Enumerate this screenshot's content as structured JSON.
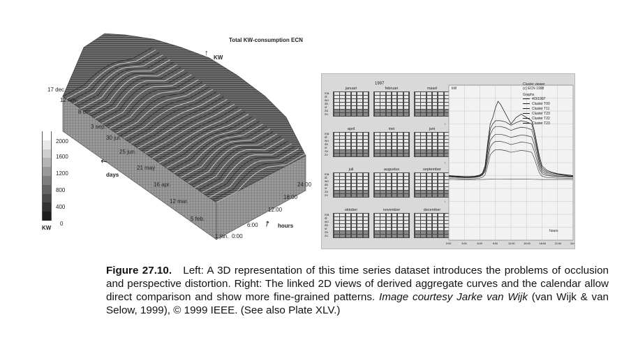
{
  "left_figure": {
    "title": "Total KW-consumption ECN",
    "z_axis_label": "KW",
    "date_labels": [
      "17 dec.",
      "12 nov.",
      "8 oct.",
      "3 sep.",
      "30 jul.",
      "25 jun.",
      "21 may",
      "16 apr.",
      "12 mar.",
      "5 feb.",
      "1 jan."
    ],
    "days_label": "days",
    "hour_labels": [
      "0:00",
      "6:00",
      "12:00",
      "18:00",
      "24:00"
    ],
    "hours_label": "hours",
    "legend_values": [
      "2000",
      "1600",
      "1200",
      "800",
      "400",
      "0"
    ],
    "legend_unit": "KW"
  },
  "right_figure": {
    "year": "1997",
    "weekdays": [
      "ma",
      "di",
      "wo",
      "do",
      "vr",
      "za",
      "zo"
    ],
    "months": [
      "januari",
      "februari",
      "maart",
      "april",
      "mei",
      "juni",
      "juli",
      "augustus",
      "september",
      "oktober",
      "november",
      "december"
    ],
    "chart_data": {
      "type": "line",
      "ylabel": "kW",
      "xlabel": "hours",
      "x_ticks": [
        "0:00",
        "3:00",
        "6:00",
        "9:00",
        "12:00",
        "15:00",
        "18:00",
        "21:00",
        "24:00"
      ],
      "y_ticks": [
        "200",
        "400",
        "600",
        "800",
        "1000",
        "1200",
        "1400",
        "1600",
        "1800",
        "2000",
        "2200"
      ],
      "ylim": [
        0,
        2400
      ],
      "xlim": [
        0,
        24
      ],
      "x": [
        0,
        1,
        2,
        3,
        4,
        5,
        6,
        6.5,
        7,
        7.5,
        8,
        8.5,
        9,
        9.5,
        10,
        11,
        12,
        13,
        14,
        15,
        16,
        16.5,
        17,
        17.5,
        18,
        19,
        20,
        21,
        22,
        23,
        24
      ],
      "series": [
        {
          "name": "4/3/1997",
          "values": [
            1000,
            990,
            985,
            980,
            980,
            985,
            1000,
            1040,
            1150,
            1500,
            1800,
            1900,
            2050,
            2150,
            2100,
            1950,
            1800,
            1900,
            1950,
            1900,
            1850,
            1700,
            1500,
            1300,
            1150,
            1080,
            1050,
            1030,
            1020,
            1010,
            1000
          ]
        },
        {
          "name": "Cluster T00",
          "values": [
            1000,
            995,
            990,
            985,
            985,
            990,
            1010,
            1040,
            1130,
            1450,
            1720,
            1800,
            1850,
            1850,
            1850,
            1830,
            1780,
            1820,
            1850,
            1830,
            1800,
            1650,
            1450,
            1250,
            1120,
            1060,
            1040,
            1025,
            1015,
            1005,
            1000
          ]
        },
        {
          "name": "Cluster T11",
          "values": [
            990,
            985,
            980,
            978,
            978,
            982,
            1000,
            1030,
            1100,
            1380,
            1640,
            1720,
            1760,
            1760,
            1760,
            1740,
            1700,
            1730,
            1750,
            1740,
            1710,
            1580,
            1400,
            1200,
            1090,
            1040,
            1025,
            1015,
            1005,
            995,
            990
          ]
        },
        {
          "name": "Cluster T23",
          "values": [
            985,
            980,
            975,
            972,
            972,
            976,
            990,
            1020,
            1080,
            1300,
            1540,
            1600,
            1640,
            1640,
            1640,
            1620,
            1590,
            1610,
            1630,
            1620,
            1600,
            1480,
            1320,
            1150,
            1060,
            1020,
            1005,
            995,
            990,
            985,
            985
          ]
        },
        {
          "name": "Cluster T22",
          "values": [
            980,
            975,
            970,
            968,
            968,
            972,
            985,
            1010,
            1060,
            1230,
            1440,
            1500,
            1530,
            1530,
            1530,
            1510,
            1480,
            1500,
            1520,
            1510,
            1490,
            1380,
            1240,
            1100,
            1030,
            1000,
            990,
            985,
            982,
            980,
            980
          ]
        },
        {
          "name": "Cluster T23",
          "values": [
            960,
            955,
            952,
            950,
            950,
            952,
            960,
            975,
            1010,
            1150,
            1320,
            1370,
            1400,
            1400,
            1400,
            1385,
            1360,
            1375,
            1390,
            1380,
            1360,
            1270,
            1150,
            1040,
            990,
            970,
            965,
            962,
            960,
            958,
            960
          ]
        },
        {
          "name": "Cluster T00",
          "values": [
            940,
            938,
            936,
            935,
            935,
            936,
            938,
            940,
            942,
            944,
            946,
            946,
            948,
            948,
            948,
            946,
            945,
            946,
            946,
            945,
            944,
            943,
            942,
            941,
            940,
            940,
            940,
            939,
            939,
            939,
            940
          ]
        }
      ]
    },
    "cluster_viewer": {
      "title": "Cluster viewer",
      "copyright": "(c) ECN 1998",
      "graphs_label": "Graphs",
      "entries": [
        "4/3/1997",
        "Cluster T00",
        "Cluster T11",
        "Cluster T23",
        "Cluster T22",
        "Cluster T23"
      ]
    }
  },
  "caption": {
    "figure_number": "Figure 27.10.",
    "text_plain": "Left: A 3D representation of this time series dataset introduces the problems of occlusion and perspective distortion. Right: The linked 2D views of derived aggregate curves and the calendar allow direct comparison and show more fine-grained patterns.",
    "courtesy": "Image courtesy Jarke van Wijk",
    "citation": "(van Wijk & van Selow, 1999), © 1999 IEEE. (See also Plate XLV.)"
  }
}
